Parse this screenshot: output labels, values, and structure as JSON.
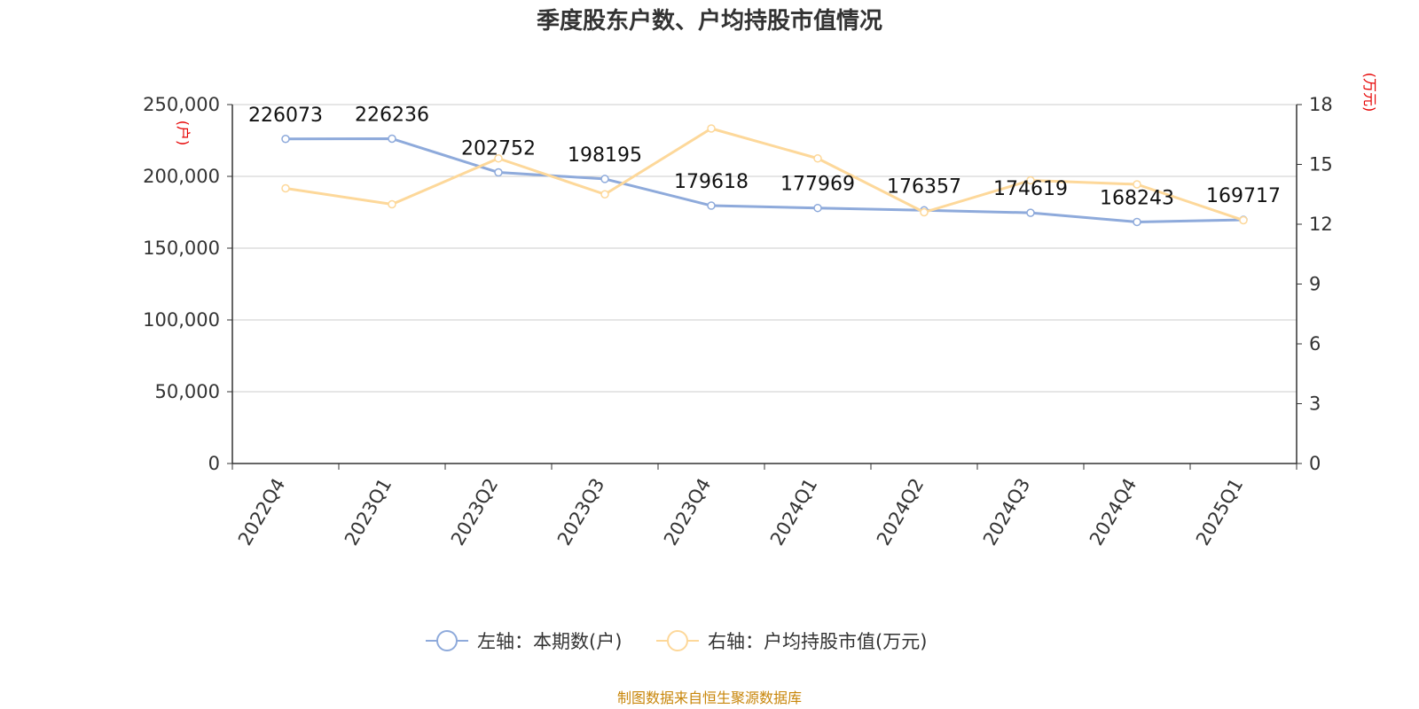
{
  "title": "季度股东户数、户均持股市值情况",
  "source": "制图数据来自恒生聚源数据库",
  "colors": {
    "left_series": "#8eaadb",
    "right_series": "#fdd89a",
    "unit": "#e60000",
    "source": "#c8860a",
    "grid": "#cccccc",
    "axis": "#333333"
  },
  "chart_data": {
    "type": "line",
    "categories": [
      "2022Q4",
      "2023Q1",
      "2023Q2",
      "2023Q3",
      "2023Q4",
      "2024Q1",
      "2024Q2",
      "2024Q3",
      "2024Q4",
      "2025Q1"
    ],
    "left_axis": {
      "unit": "(户)",
      "range": [
        0,
        250000
      ],
      "ticks": [
        "0",
        "50,000",
        "100,000",
        "150,000",
        "200,000",
        "250,000"
      ]
    },
    "right_axis": {
      "unit": "(万元)",
      "range": [
        0,
        18
      ],
      "ticks": [
        "0",
        "3",
        "6",
        "9",
        "12",
        "15",
        "18"
      ]
    },
    "series": [
      {
        "name": "左轴：本期数(户)",
        "axis": "left",
        "values": [
          226073,
          226236,
          202752,
          198195,
          179618,
          177969,
          176357,
          174619,
          168243,
          169717
        ],
        "labels": [
          "226073",
          "226236",
          "202752",
          "198195",
          "179618",
          "177969",
          "176357",
          "174619",
          "168243",
          "169717"
        ]
      },
      {
        "name": "右轴：户均持股市值(万元)",
        "axis": "right",
        "values": [
          13.8,
          13.0,
          15.3,
          13.5,
          16.8,
          15.3,
          12.6,
          14.2,
          14.0,
          12.2
        ]
      }
    ],
    "grid": true,
    "legend_position": "bottom-center"
  }
}
